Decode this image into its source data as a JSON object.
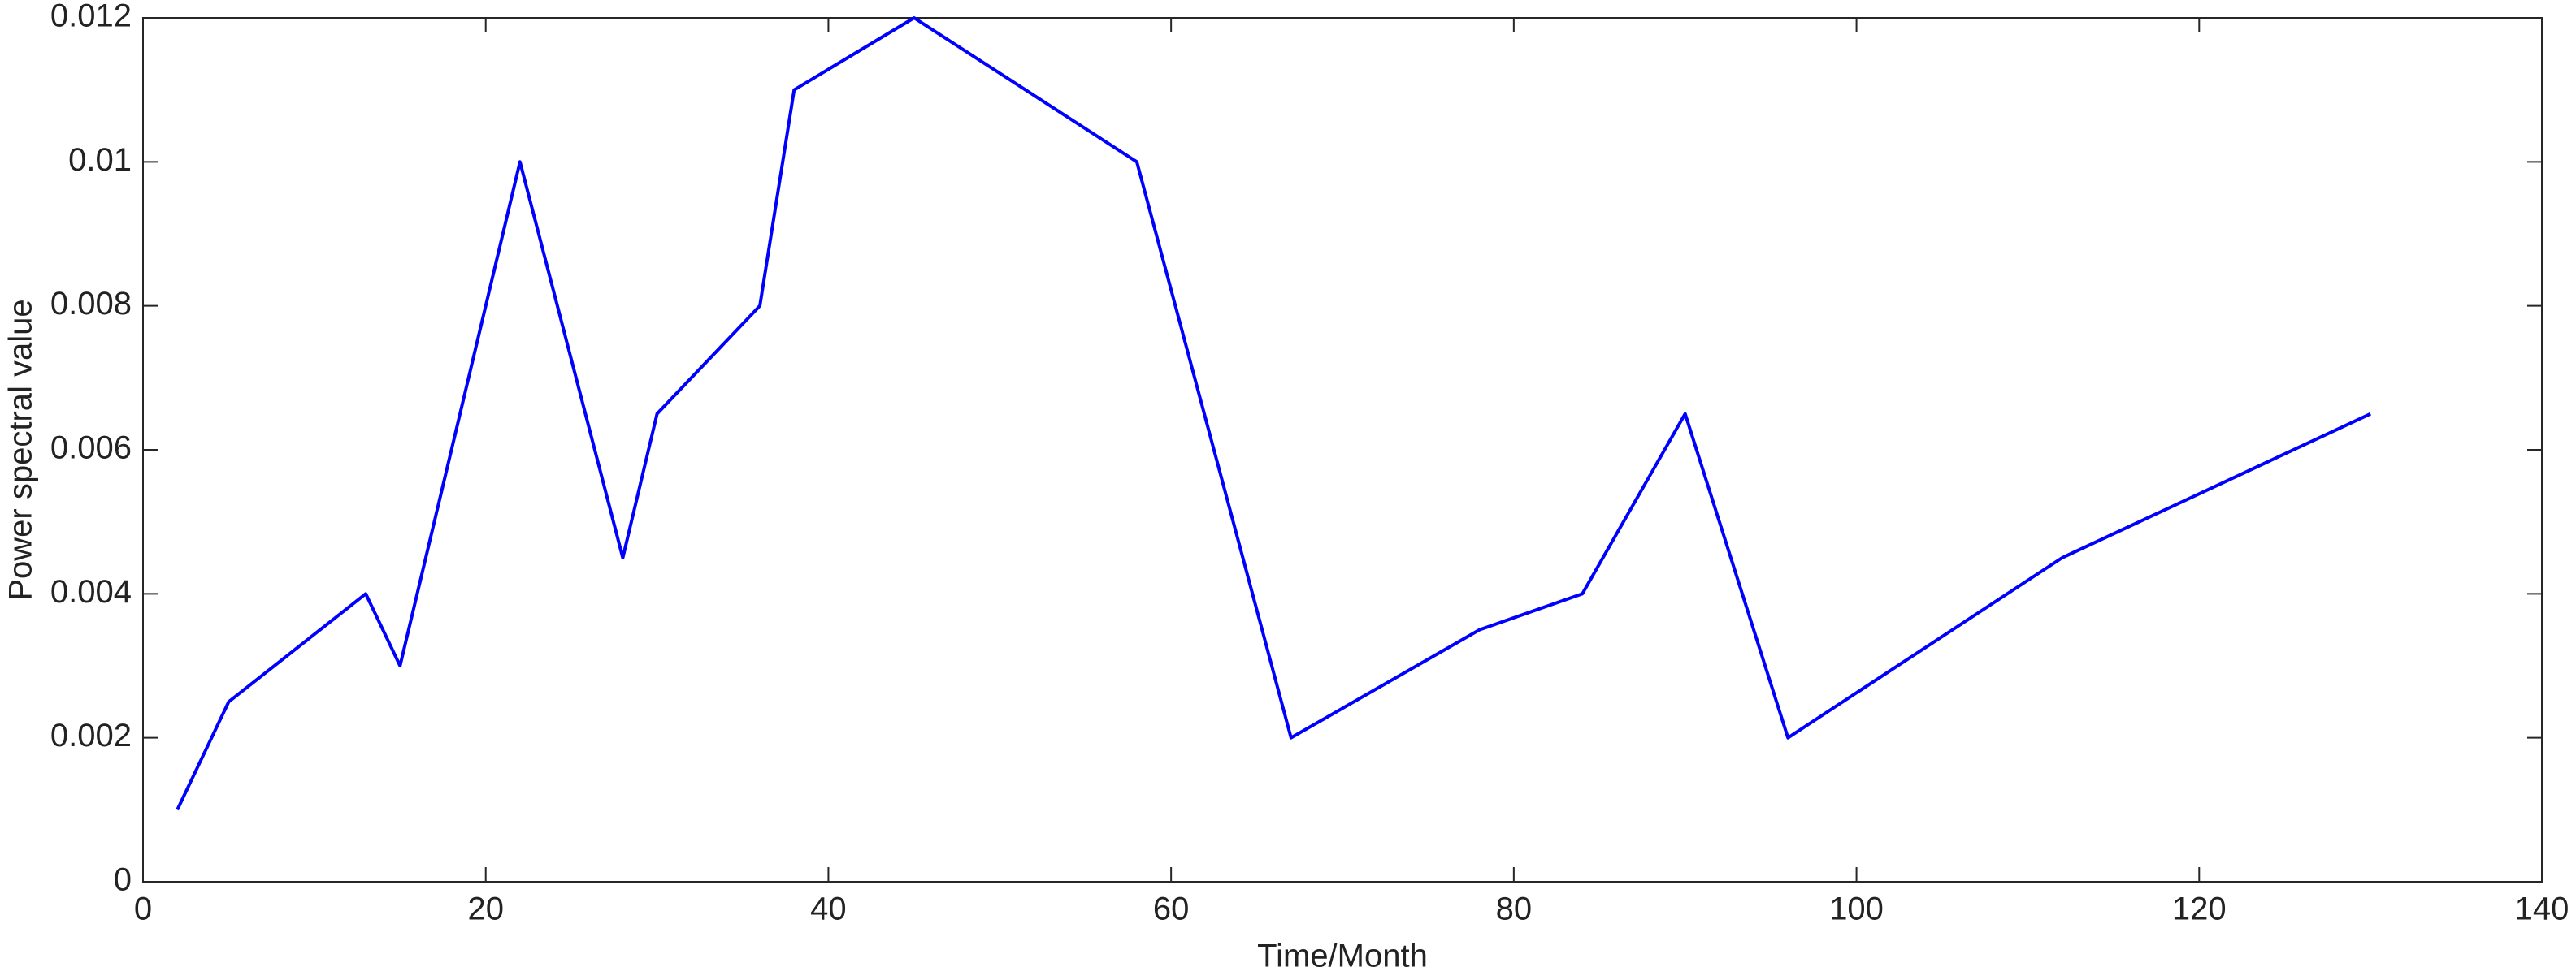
{
  "chart_data": {
    "type": "line",
    "x_label": "Time/Month",
    "y_label": "Power spectral value",
    "x": [
      2,
      5,
      13,
      15,
      22,
      28,
      30,
      36,
      38,
      45,
      58,
      67,
      78,
      84,
      90,
      96,
      112,
      130
    ],
    "series": [
      {
        "color": "#0000ff",
        "values": [
          0.001,
          0.0025,
          0.004,
          0.003,
          0.01,
          0.0045,
          0.0065,
          0.008,
          0.011,
          0.012,
          0.01,
          0.002,
          0.0035,
          0.004,
          0.0065,
          0.002,
          0.0045,
          0.0065
        ]
      }
    ],
    "xlim": [
      0,
      140
    ],
    "xticks": [
      0,
      20,
      40,
      60,
      80,
      100,
      120,
      140
    ],
    "ylim": [
      0,
      0.012
    ],
    "yticks": [
      0,
      0.002,
      0.004,
      0.006,
      0.008,
      0.01,
      0.012
    ],
    "grid": false
  }
}
